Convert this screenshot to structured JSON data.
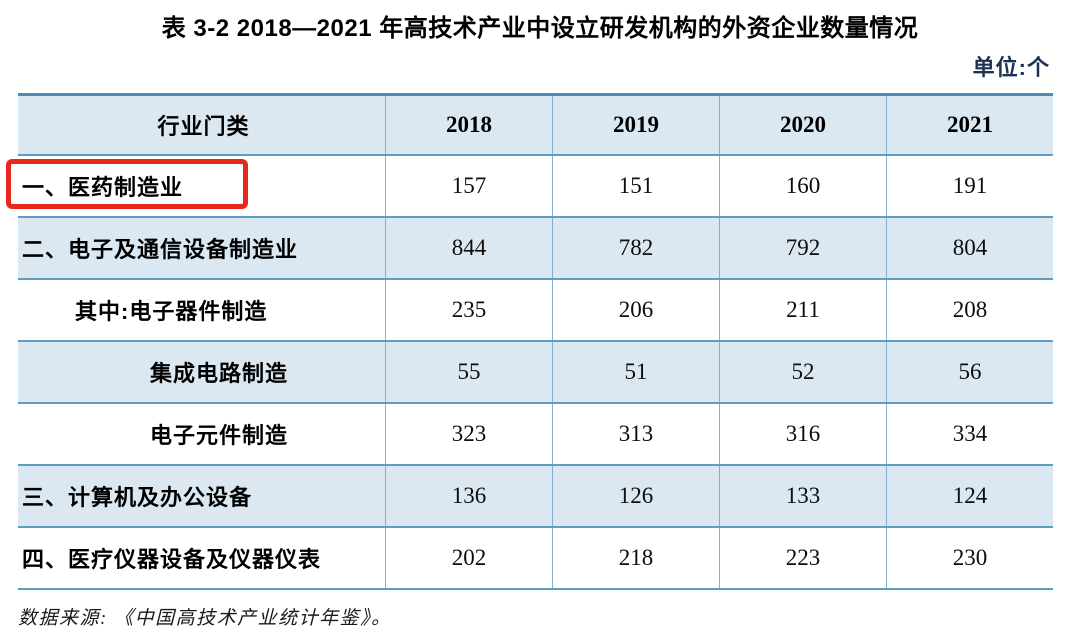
{
  "title": "表 3-2 2018—2021 年高技术产业中设立研发机构的外资企业数量情况",
  "unit_label": "单位:个",
  "source_note": "数据来源: 《中国高技术产业统计年鉴》。",
  "colors": {
    "row_fill": "#dbe8f2",
    "border_horizontal": "#5f9cc2",
    "border_vertical": "#7fb0cd",
    "table_top_border": "#4d8cb4",
    "highlight_box": "#e8281e",
    "unit_text": "#1d3253"
  },
  "table": {
    "columns": [
      "行业门类",
      "2018",
      "2019",
      "2020",
      "2021"
    ],
    "rows": [
      {
        "label": "一、医药制造业",
        "indent": 0,
        "highlighted": true,
        "values": [
          "157",
          "151",
          "160",
          "191"
        ]
      },
      {
        "label": "二、电子及通信设备制造业",
        "indent": 0,
        "highlighted": false,
        "values": [
          "844",
          "782",
          "792",
          "804"
        ]
      },
      {
        "label": "其中:电子器件制造",
        "indent": 1,
        "highlighted": false,
        "values": [
          "235",
          "206",
          "211",
          "208"
        ]
      },
      {
        "label": "集成电路制造",
        "indent": 2,
        "highlighted": false,
        "values": [
          "55",
          "51",
          "52",
          "56"
        ]
      },
      {
        "label": "电子元件制造",
        "indent": 2,
        "highlighted": false,
        "values": [
          "323",
          "313",
          "316",
          "334"
        ]
      },
      {
        "label": "三、计算机及办公设备",
        "indent": 0,
        "highlighted": false,
        "values": [
          "136",
          "126",
          "133",
          "124"
        ]
      },
      {
        "label": "四、医疗仪器设备及仪器仪表",
        "indent": 0,
        "highlighted": false,
        "values": [
          "202",
          "218",
          "223",
          "230"
        ]
      }
    ]
  }
}
